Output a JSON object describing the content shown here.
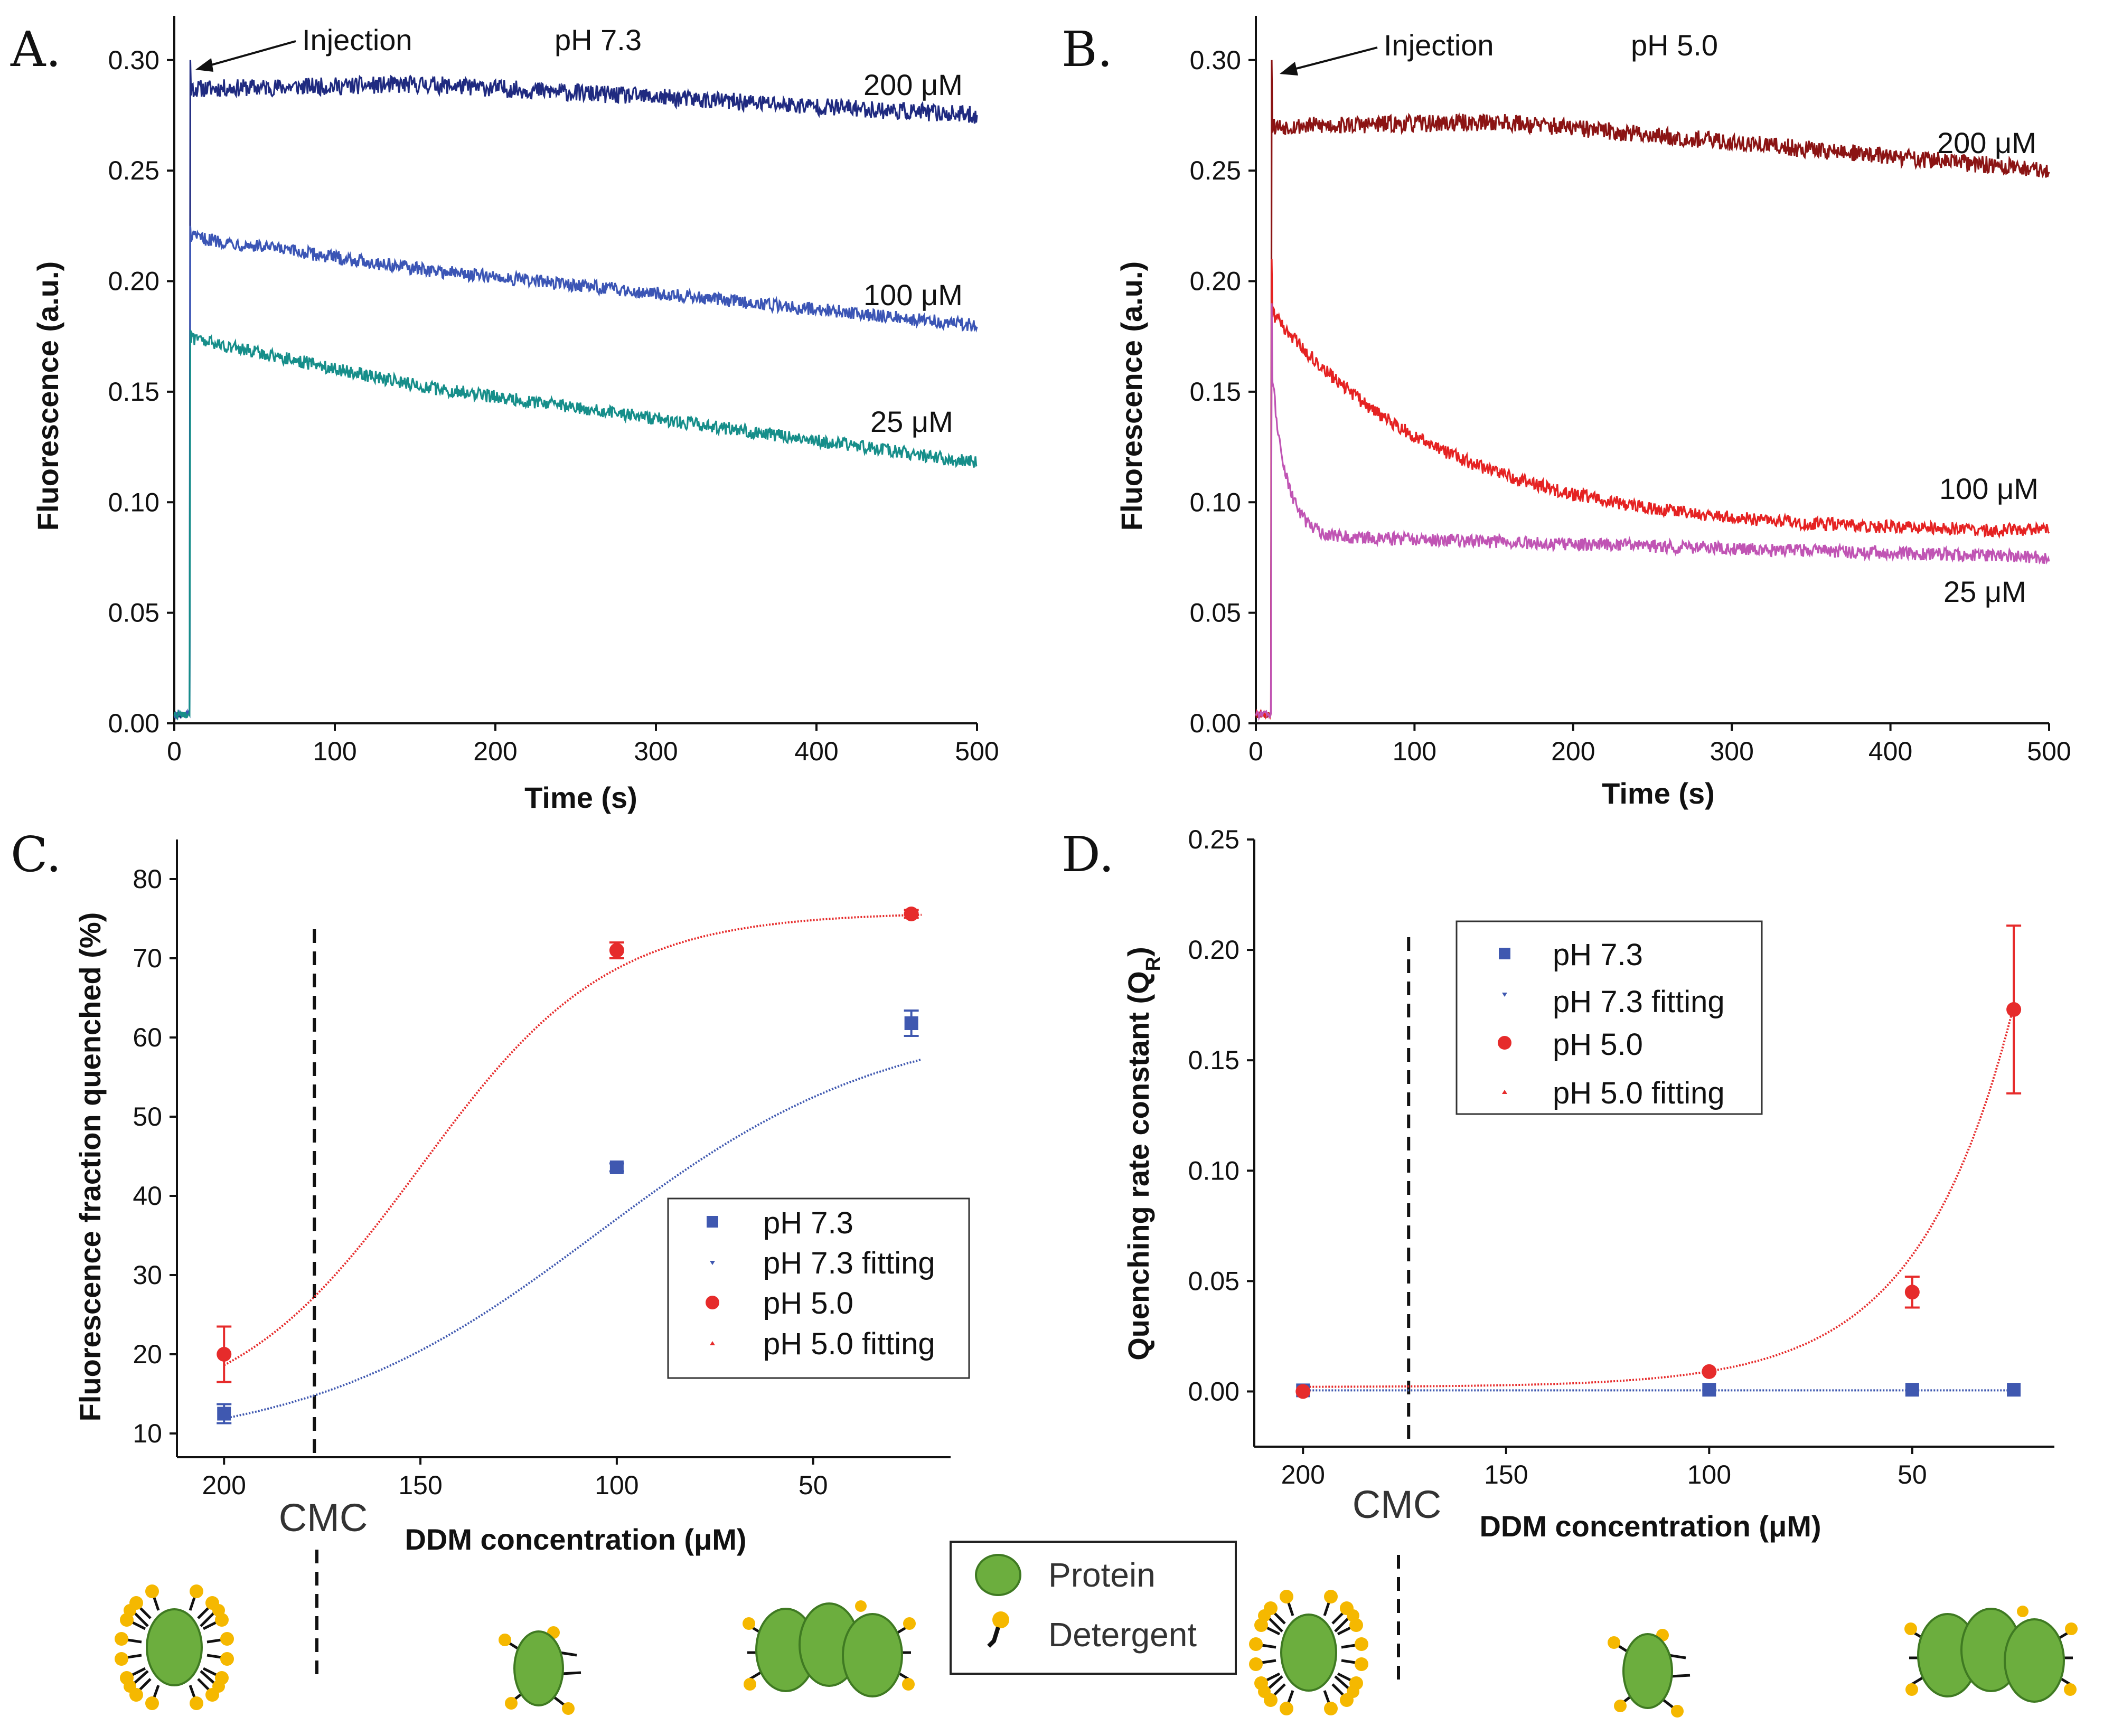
{
  "chart_data": [
    {
      "id": "A",
      "type": "line",
      "panel_label": "A.",
      "condition": "pH 7.3",
      "xlabel": "Time (s)",
      "ylabel": "Fluorescence (a.u.)",
      "xlim": [
        0,
        500
      ],
      "ylim": [
        0,
        0.32
      ],
      "x_ticks": [
        0,
        100,
        200,
        300,
        400,
        500
      ],
      "y_ticks": [
        0.0,
        0.05,
        0.1,
        0.15,
        0.2,
        0.25,
        0.3
      ],
      "annotation": "Injection",
      "injection_time": 10,
      "series": [
        {
          "name": "200 μM",
          "color": "#1f2a80",
          "baseline": 0.004,
          "peak": 0.3,
          "plateau_start": 0.287,
          "plateau_mid": 0.289,
          "end": 0.275,
          "noise": 0.004
        },
        {
          "name": "100 μM",
          "color": "#3b55b5",
          "baseline": 0.004,
          "peak": 0.225,
          "plateau_start": 0.22,
          "plateau_mid": 0.205,
          "end": 0.18,
          "noise": 0.003
        },
        {
          "name": "25 μM",
          "color": "#168e8a",
          "baseline": 0.004,
          "peak": 0.178,
          "plateau_start": 0.174,
          "plateau_mid": 0.152,
          "end": 0.118,
          "noise": 0.003
        }
      ]
    },
    {
      "id": "B",
      "type": "line",
      "panel_label": "B.",
      "condition": "pH 5.0",
      "xlabel": "Time (s)",
      "ylabel": "Fluorescence (a.u.)",
      "xlim": [
        0,
        500
      ],
      "ylim": [
        0,
        0.32
      ],
      "x_ticks": [
        0,
        100,
        200,
        300,
        400,
        500
      ],
      "y_ticks": [
        0.0,
        0.05,
        0.1,
        0.15,
        0.2,
        0.25,
        0.3
      ],
      "annotation": "Injection",
      "injection_time": 10,
      "series": [
        {
          "name": "200 μM",
          "color": "#8b1414",
          "baseline": 0.004,
          "peak": 0.3,
          "plateau_start": 0.27,
          "plateau_mid": 0.272,
          "end": 0.25,
          "noise": 0.004
        },
        {
          "name": "100 μM",
          "color": "#e52222",
          "baseline": 0.004,
          "peak": 0.21,
          "decay_A": 0.1,
          "decay_tau": 110,
          "offset": 0.086,
          "noise": 0.003
        },
        {
          "name": "25 μM",
          "color": "#c054b4",
          "baseline": 0.004,
          "peak": 0.19,
          "decay_A": 0.075,
          "decay_tau": 9,
          "offset": 0.085,
          "drift_end": 0.075,
          "noise": 0.003
        }
      ]
    },
    {
      "id": "C",
      "type": "scatter",
      "panel_label": "C.",
      "xlabel": "DDM concentration (μM)",
      "ylabel": "Fluorescence fraction quenched (%)",
      "x_reversed": true,
      "xlim": [
        212,
        15
      ],
      "ylim": [
        7,
        85
      ],
      "x_ticks": [
        200,
        150,
        100,
        50
      ],
      "y_ticks": [
        10,
        20,
        30,
        40,
        50,
        60,
        70,
        80
      ],
      "cmc_x": 177,
      "cmc_label": "CMC",
      "legend": [
        "pH 7.3",
        "pH 7.3 fitting",
        "pH 5.0",
        "pH 5.0 fitting"
      ],
      "series": [
        {
          "name": "pH 7.3",
          "color": "#3f58b0",
          "marker": "square",
          "x": [
            200,
            100,
            25
          ],
          "y": [
            12.5,
            43.6,
            61.8
          ],
          "err": [
            1.2,
            0.5,
            1.6
          ]
        },
        {
          "name": "pH 5.0",
          "color": "#e62b2b",
          "marker": "circle",
          "x": [
            200,
            100,
            25
          ],
          "y": [
            20.0,
            71.0,
            75.6
          ],
          "err": [
            3.5,
            1.0,
            0.5
          ]
        }
      ],
      "fits": [
        {
          "name": "pH 7.3 fitting",
          "color": "#3f58b0",
          "low": 8.0,
          "high": 62.5,
          "x0": 105,
          "w": 37
        },
        {
          "name": "pH 5.0 fitting",
          "color": "#e62b2b",
          "low": 11.5,
          "high": 75.8,
          "x0": 150,
          "w": 24
        }
      ]
    },
    {
      "id": "D",
      "type": "scatter",
      "panel_label": "D.",
      "xlabel": "DDM concentration (μM)",
      "ylabel": "Quenching rate constant (Q",
      "ylabel_sub": "R",
      "ylabel_end": ")",
      "x_reversed": true,
      "xlim": [
        212,
        15
      ],
      "ylim": [
        -0.025,
        0.25
      ],
      "x_ticks": [
        200,
        150,
        100,
        50
      ],
      "y_ticks": [
        0.0,
        0.05,
        0.1,
        0.15,
        0.2,
        0.25
      ],
      "cmc_x": 174,
      "cmc_label": "CMC",
      "legend": [
        "pH 7.3",
        "pH 7.3 fitting",
        "pH 5.0",
        "pH 5.0 fitting"
      ],
      "series": [
        {
          "name": "pH 7.3",
          "color": "#3f58b0",
          "marker": "square",
          "x": [
            200,
            100,
            50,
            25
          ],
          "y": [
            0.0005,
            0.0008,
            0.0008,
            0.0008
          ],
          "err": [
            0,
            0,
            0,
            0
          ]
        },
        {
          "name": "pH 5.0",
          "color": "#e62b2b",
          "marker": "circle",
          "x": [
            200,
            100,
            50,
            25
          ],
          "y": [
            0.0,
            0.009,
            0.045,
            0.173
          ],
          "err": [
            0,
            0,
            0.007,
            0.038
          ]
        }
      ],
      "fits": [
        {
          "name": "pH 7.3 fitting",
          "color": "#3f58b0",
          "const": 0.0005
        },
        {
          "name": "pH 5.0 fitting",
          "color": "#e62b2b",
          "c0": 0.002,
          "A": 0.5,
          "k": 0.0425
        }
      ]
    }
  ],
  "figure_legend": {
    "protein": "Protein",
    "detergent": "Detergent",
    "protein_color": "#6cae3e",
    "detergent_color": "#f5b800"
  }
}
